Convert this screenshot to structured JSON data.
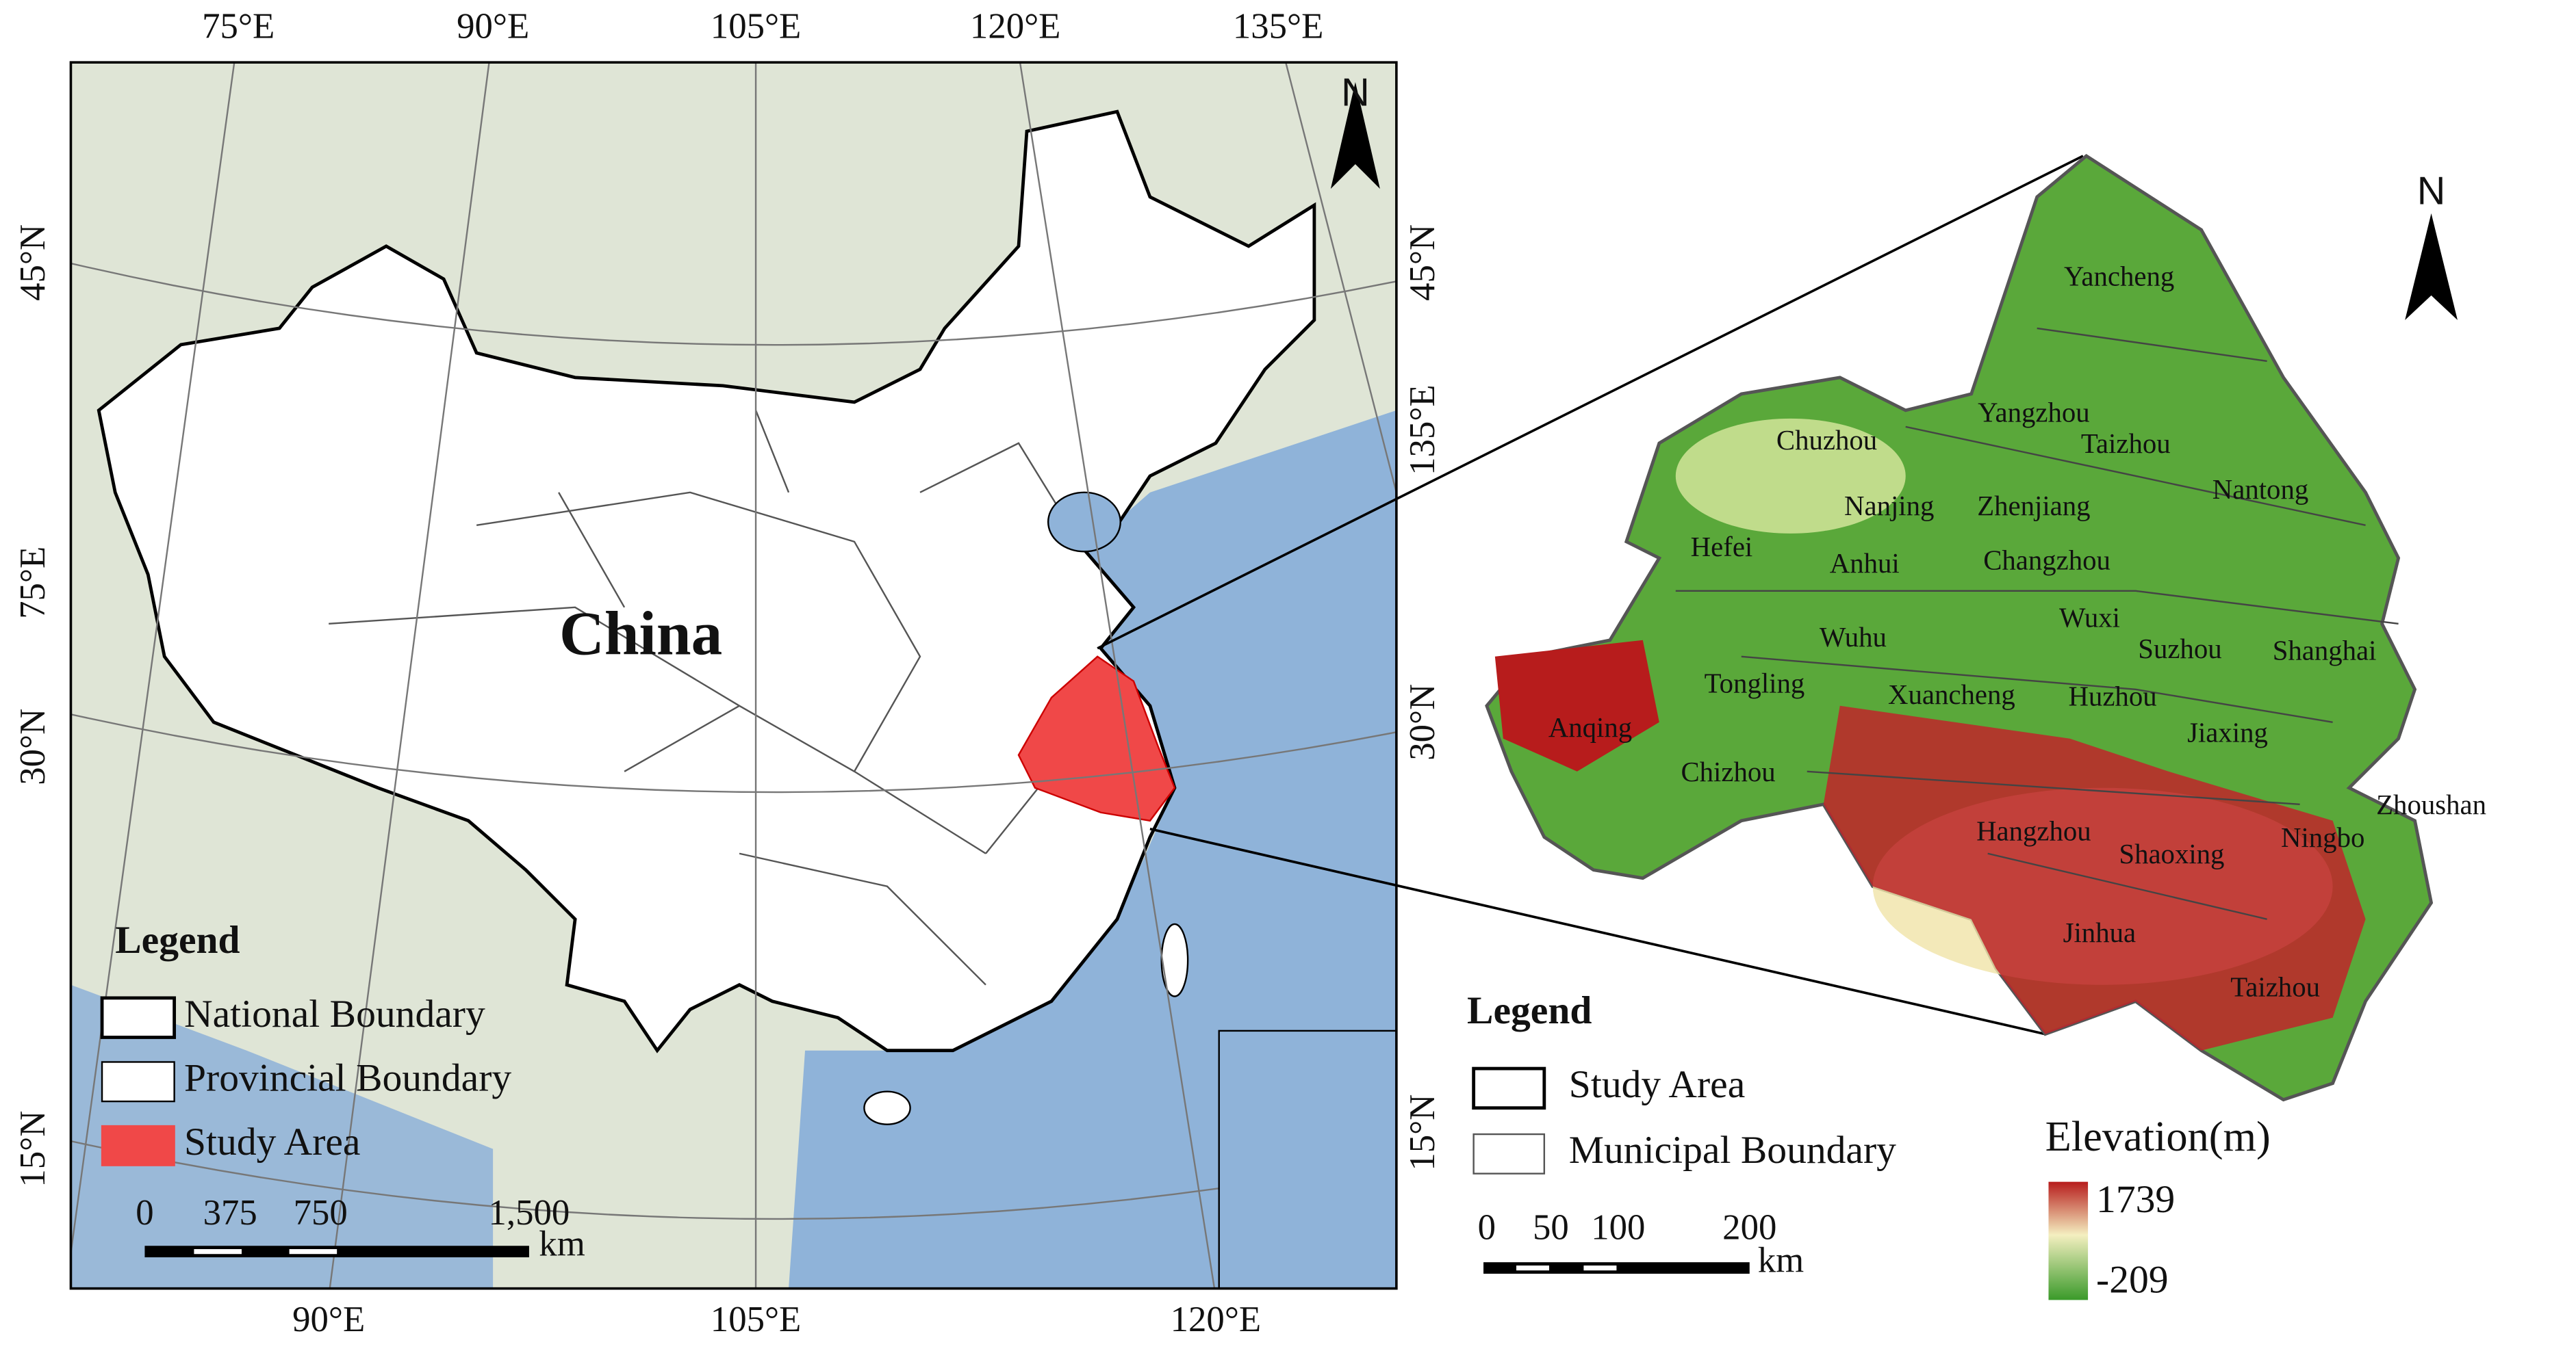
{
  "left_map": {
    "lon_labels_top": [
      "75°E",
      "90°E",
      "105°E",
      "120°E",
      "135°E"
    ],
    "lon_labels_bottom": [
      "90°E",
      "105°E",
      "120°E"
    ],
    "lat_labels_left": [
      "45°N",
      "75°E",
      "30°N",
      "15°N"
    ],
    "lat_labels_right": [
      "45°N",
      "135°E",
      "30°N",
      "15°N"
    ],
    "country_label": "China",
    "north": "N",
    "legend": {
      "title": "Legend",
      "items": [
        "National Boundary",
        "Provincial Boundary",
        "Study Area"
      ]
    },
    "scale_bar": {
      "ticks": [
        "0",
        "375",
        "750",
        "1,500"
      ],
      "unit": "km"
    }
  },
  "right_map": {
    "north": "N",
    "cities": [
      "Yancheng",
      "Chuzhou",
      "Yangzhou",
      "Taizhou",
      "Nantong",
      "Nanjing",
      "Zhenjiang",
      "Hefei",
      "Anhui",
      "Changzhou",
      "Wuxi",
      "Wuhu",
      "Suzhou",
      "Shanghai",
      "Tongling",
      "Xuancheng",
      "Huzhou",
      "Anqing",
      "Jiaxing",
      "Chizhou",
      "Zhoushan",
      "Hangzhou",
      "Ningbo",
      "Shaoxing",
      "Jinhua",
      "Taizhou"
    ],
    "legend": {
      "title": "Legend",
      "items": [
        "Study Area",
        "Municipal Boundary"
      ]
    },
    "scale_bar": {
      "ticks": [
        "0",
        "50",
        "100",
        "200"
      ],
      "unit": "km"
    },
    "elevation": {
      "title": "Elevation(m)",
      "max": 1739,
      "min": -209
    }
  }
}
